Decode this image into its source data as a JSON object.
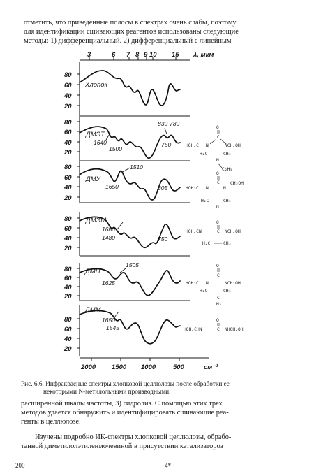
{
  "page": {
    "top_lines": [
      "отметить, что приведенные полосы в спектрах очень слабы, поэтому",
      "для идентификации сшивающих реагентов использованы следующие",
      "методы: 1) дифференциальный. 2) дифференциальный с линейным"
    ],
    "caption_lines": [
      "Рис. 6.6. Инфракрасные спектры хлопковой целлюлозы после обработки ее",
      "некоторыми N-метилольными производными."
    ],
    "para2_lines": [
      "расширенной шкалы частоты, 3) гидролиз. С помощью этих трех",
      "методов удается обнаружить и идентифицировать сшивающие реа-",
      "генты в целлюлозе."
    ],
    "para3_lines": [
      "Изучены подробно ИК-спектры хлопковой целлюлозы, обрабо-",
      "танной диметилолэтиленмочевиной в присутствии катализатороз"
    ],
    "page_number": "200",
    "page_mark": "4*"
  },
  "figure": {
    "top_axis": {
      "ticks": [
        "3",
        "6",
        "7",
        "8",
        "9",
        "10",
        "15"
      ],
      "unit": "λ, мкм"
    },
    "bottom_axis": {
      "ticks": [
        "2000",
        "1500",
        "1000",
        "500"
      ],
      "unit": "см⁻¹"
    },
    "panels": [
      {
        "name": "Хлопок",
        "y_ticks": [
          "80",
          "60",
          "40",
          "20"
        ],
        "annotations": []
      },
      {
        "name": "ДМЭТ",
        "y_ticks": [
          "80",
          "60",
          "40",
          "20"
        ],
        "annotations": [
          "1640",
          "1500",
          "830",
          "780",
          "750"
        ]
      },
      {
        "name": "ДМУ",
        "y_ticks": [
          "80",
          "60",
          "40",
          "20"
        ],
        "annotations": [
          "1510",
          "1650",
          "805"
        ]
      },
      {
        "name": "ДМЭМ",
        "y_ticks": [
          "80",
          "60",
          "40",
          "20"
        ],
        "annotations": [
          "1680",
          "1480",
          "750"
        ]
      },
      {
        "name": "ДМП",
        "y_ticks": [
          "80",
          "60",
          "40",
          "20"
        ],
        "annotations": [
          "1505",
          "1625"
        ]
      },
      {
        "name": "ДММ",
        "y_ticks": [
          "80",
          "60",
          "40",
          "20"
        ],
        "annotations": [
          "1650",
          "1545"
        ]
      }
    ],
    "structures": {
      "s1": [
        "O",
        "C",
        "HOH₂C",
        "N",
        "NCH₂OH",
        "H₂C",
        "CH₂",
        "N",
        "C₂H₅"
      ],
      "s2": [
        "O",
        "C",
        "HOH₂C",
        "N",
        "N",
        "CH₂OH",
        "H₂C",
        "CH₂",
        "O"
      ],
      "s3": [
        "O",
        "HOH₂CN",
        "C",
        "NCH₂OH",
        "H₂C",
        "CH₂"
      ],
      "s4": [
        "O",
        "C",
        "HOH₂C",
        "N",
        "NCH₂OH",
        "H₂C",
        "CH₂",
        "C",
        "H₂"
      ],
      "s5": [
        "O",
        "HOH₂CHN",
        "C",
        "NHCH₂OH"
      ]
    }
  }
}
